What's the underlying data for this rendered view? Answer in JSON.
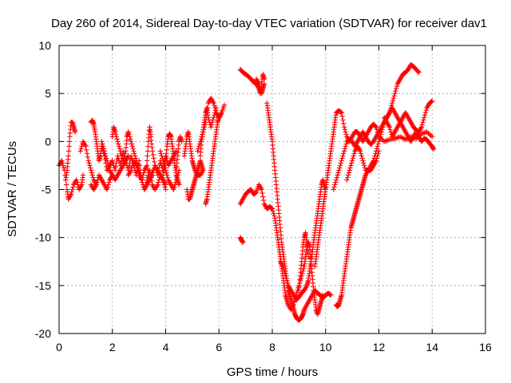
{
  "chart_data": {
    "type": "scatter",
    "title": "Day 260 of 2014, Sidereal Day-to-day VTEC variation (SDTVAR) for receiver dav1",
    "xlabel": "GPS time / hours",
    "ylabel": "SDTVAR / TECUs",
    "xlim": [
      0,
      16
    ],
    "ylim": [
      -20,
      10
    ],
    "xticks": [
      "0",
      "2",
      "4",
      "6",
      "8",
      "10",
      "12",
      "14",
      "16"
    ],
    "yticks": [
      "-20",
      "-15",
      "-10",
      "-5",
      "0",
      "5",
      "10"
    ],
    "grid": true,
    "marker": "+",
    "color": "#ff0000",
    "series": [
      {
        "name": "t0a",
        "x": [
          0.0,
          0.1,
          0.2,
          0.3,
          0.35,
          0.45,
          0.55,
          0.65,
          0.75,
          0.85,
          0.9
        ],
        "y": [
          -2.5,
          -2.0,
          -3.0,
          -5.0,
          -6.0,
          -5.5,
          -4.5,
          -4.0,
          -5.0,
          -4.5,
          -3.5
        ]
      },
      {
        "name": "t0b",
        "x": [
          0.25,
          0.3,
          0.35,
          0.4,
          0.45,
          0.5,
          0.55,
          0.6
        ],
        "y": [
          -4.0,
          -3.0,
          -1.5,
          0.5,
          2.0,
          2.0,
          1.5,
          1.0
        ]
      },
      {
        "name": "t0c",
        "x": [
          0.8,
          0.9,
          1.0,
          1.1,
          1.2,
          1.3,
          1.4
        ],
        "y": [
          -1.0,
          0.0,
          -0.5,
          -2.0,
          -3.0,
          -4.0,
          -4.5
        ]
      },
      {
        "name": "t1a",
        "x": [
          1.2,
          1.25,
          1.3,
          1.35,
          1.4,
          1.45,
          1.5,
          1.55,
          1.6,
          1.7,
          1.8,
          1.9,
          2.0,
          2.1,
          2.2,
          2.3,
          2.4,
          2.5,
          2.6,
          2.7,
          2.8,
          2.9,
          3.0,
          3.1,
          3.2,
          3.3,
          3.4,
          3.5,
          3.6,
          3.7,
          3.8,
          3.9,
          4.0,
          4.1,
          4.2,
          4.3,
          4.4
        ],
        "y": [
          2.0,
          2.2,
          1.8,
          1.0,
          0.0,
          -1.0,
          -2.0,
          -1.5,
          -0.5,
          -1.5,
          -3.0,
          -2.5,
          -2.0,
          -3.0,
          -1.5,
          -2.5,
          -1.0,
          -2.0,
          -3.0,
          -1.5,
          -2.5,
          -3.5,
          -2.0,
          -4.0,
          -3.0,
          -2.5,
          -4.0,
          -3.5,
          -2.5,
          -3.5,
          -2.0,
          -3.0,
          -1.5,
          -2.5,
          -2.0,
          -1.5,
          -1.0
        ]
      },
      {
        "name": "t1b",
        "x": [
          1.2,
          1.3,
          1.4,
          1.5,
          1.6,
          1.7,
          1.8,
          1.9,
          2.0
        ],
        "y": [
          -4.5,
          -5.0,
          -4.5,
          -3.5,
          -4.0,
          -4.5,
          -5.0,
          -4.0,
          -3.5
        ]
      },
      {
        "name": "t1c",
        "x": [
          1.6,
          1.7,
          1.8,
          1.9,
          2.0,
          2.1,
          2.2,
          2.3,
          2.4,
          2.5,
          2.6
        ],
        "y": [
          0.0,
          -1.0,
          -2.0,
          -3.0,
          -3.5,
          -4.0,
          -3.5,
          -3.0,
          -2.5,
          -2.0,
          -1.5
        ]
      },
      {
        "name": "t1d",
        "x": [
          2.0,
          2.05,
          2.1,
          2.2,
          2.3,
          2.4,
          2.5,
          2.55,
          2.6,
          2.7,
          2.8,
          2.9,
          3.0,
          3.1,
          3.2,
          3.3,
          3.4,
          3.5
        ],
        "y": [
          0.5,
          1.5,
          1.0,
          0.0,
          -1.0,
          -2.0,
          -1.0,
          0.5,
          1.0,
          0.0,
          -1.0,
          -2.0,
          -3.0,
          -4.0,
          -5.0,
          -4.5,
          -4.0,
          -3.0
        ]
      },
      {
        "name": "t1e",
        "x": [
          2.6,
          2.7,
          2.8,
          2.9,
          3.0,
          3.1,
          3.2,
          3.3,
          3.4,
          3.5,
          3.6,
          3.7,
          3.8,
          3.9,
          4.0
        ],
        "y": [
          -3.5,
          -3.0,
          -2.0,
          -2.5,
          -3.5,
          -4.0,
          -5.0,
          -4.0,
          -3.0,
          -4.5,
          -5.0,
          -4.5,
          -3.5,
          -4.0,
          -5.0
        ]
      },
      {
        "name": "t1f",
        "x": [
          3.3,
          3.35,
          3.4,
          3.45,
          3.5,
          3.6,
          3.7,
          3.8,
          3.9,
          4.0
        ],
        "y": [
          -2.0,
          0.0,
          1.5,
          0.5,
          -1.0,
          -2.5,
          -3.0,
          -3.5,
          -4.0,
          -4.5
        ]
      },
      {
        "name": "t2a",
        "x": [
          3.9,
          4.0,
          4.05,
          4.1,
          4.15,
          4.2,
          4.25,
          4.3,
          4.35,
          4.4,
          4.45,
          4.5
        ],
        "y": [
          -3.5,
          -2.0,
          -0.5,
          0.5,
          0.8,
          0.5,
          -0.5,
          -1.5,
          -2.5,
          -3.5,
          -4.0,
          -4.5
        ]
      },
      {
        "name": "t2b",
        "x": [
          3.8,
          3.9,
          4.0,
          4.1,
          4.2,
          4.3,
          4.4,
          4.5
        ],
        "y": [
          -1.0,
          -2.0,
          -3.0,
          -4.0,
          -4.5,
          -5.0,
          -4.0,
          -3.0
        ]
      },
      {
        "name": "t2c",
        "x": [
          4.4,
          4.45,
          4.5,
          4.55,
          4.6
        ],
        "y": [
          -3.0,
          -1.5,
          0.0,
          0.5,
          0.0
        ]
      },
      {
        "name": "t2d",
        "x": [
          4.7,
          4.75,
          4.8,
          4.85,
          4.9,
          4.95,
          5.0,
          5.05,
          5.1,
          5.2,
          5.3,
          5.4
        ],
        "y": [
          -1.5,
          -0.5,
          0.5,
          1.0,
          0.0,
          -1.0,
          -2.0,
          -2.5,
          -3.0,
          -3.5,
          -3.5,
          -3.0
        ]
      },
      {
        "name": "t2e",
        "x": [
          4.8,
          4.85,
          4.9,
          4.95,
          5.0,
          5.05,
          5.1,
          5.15,
          5.2,
          5.25,
          5.3,
          5.35,
          5.4
        ],
        "y": [
          -5.0,
          -6.0,
          -6.0,
          -5.5,
          -5.0,
          -4.5,
          -4.0,
          -3.5,
          -3.0,
          -2.5,
          -2.0,
          -2.5,
          -3.0
        ]
      },
      {
        "name": "t2f",
        "x": [
          5.2,
          5.3,
          5.4,
          5.5,
          5.6,
          5.7,
          5.8,
          5.9,
          6.0,
          6.1,
          6.2
        ],
        "y": [
          -1.0,
          0.0,
          1.0,
          2.0,
          4.0,
          4.5,
          4.0,
          3.0,
          2.5,
          3.0,
          3.8
        ]
      },
      {
        "name": "t2g",
        "x": [
          5.3,
          5.35,
          5.4,
          5.45,
          5.5,
          5.55,
          5.6,
          5.7,
          5.8,
          5.9
        ],
        "y": [
          -1.5,
          0.0,
          1.0,
          2.0,
          3.0,
          3.5,
          2.5,
          1.5,
          2.5,
          3.5
        ]
      },
      {
        "name": "t2h",
        "x": [
          5.5,
          5.55,
          5.6,
          5.65,
          5.7,
          5.75,
          5.8,
          5.85,
          5.9,
          5.95,
          6.0,
          6.05
        ],
        "y": [
          -6.5,
          -6.0,
          -5.0,
          -4.0,
          -3.0,
          -2.0,
          -1.0,
          0.0,
          1.0,
          2.0,
          2.5,
          2.8
        ]
      },
      {
        "name": "t3a",
        "x": [
          6.8,
          6.85,
          6.9
        ],
        "y": [
          -10.0,
          -10.3,
          -10.5
        ]
      },
      {
        "name": "t3b",
        "x": [
          6.8,
          6.9,
          7.0,
          7.1,
          7.2,
          7.3,
          7.4,
          7.5,
          7.6,
          7.7,
          7.8,
          7.9,
          8.0,
          8.1,
          8.15,
          8.2,
          8.25,
          8.3,
          8.35,
          8.4,
          8.45,
          8.5,
          8.55,
          8.6
        ],
        "y": [
          -6.5,
          -6.0,
          -5.5,
          -5.2,
          -5.0,
          -5.5,
          -5.3,
          -4.5,
          -5.0,
          -6.5,
          -7.0,
          -6.8,
          -7.0,
          -8.0,
          -9.0,
          -10.0,
          -11.0,
          -12.0,
          -13.0,
          -14.0,
          -15.0,
          -16.0,
          -16.5,
          -17.0
        ]
      },
      {
        "name": "t3c",
        "x": [
          6.8,
          6.9,
          7.0,
          7.1,
          7.2,
          7.3,
          7.4,
          7.5,
          7.55,
          7.6,
          7.65,
          7.7
        ],
        "y": [
          7.5,
          7.2,
          7.0,
          6.8,
          6.5,
          6.2,
          6.0,
          5.5,
          5.0,
          6.0,
          7.0,
          6.5
        ]
      },
      {
        "name": "t3d",
        "x": [
          7.4,
          7.5,
          7.6,
          7.65,
          7.7
        ],
        "y": [
          6.5,
          6.0,
          5.0,
          5.5,
          6.0
        ]
      },
      {
        "name": "t4a",
        "x": [
          7.8,
          7.85,
          7.9,
          7.95,
          8.0,
          8.05,
          8.1,
          8.15,
          8.2,
          8.25,
          8.3,
          8.35,
          8.4,
          8.45,
          8.5,
          8.55,
          8.6,
          8.65,
          8.7,
          8.75,
          8.8,
          8.85,
          8.9,
          8.95,
          9.0,
          9.05,
          9.1,
          9.15,
          9.2,
          9.3,
          9.4,
          9.5,
          9.6,
          9.7,
          9.8,
          9.9,
          10.0,
          10.1,
          10.2
        ],
        "y": [
          4.0,
          3.0,
          2.0,
          1.0,
          0.0,
          -1.5,
          -3.0,
          -4.5,
          -6.0,
          -7.5,
          -9.0,
          -10.5,
          -11.5,
          -12.5,
          -13.5,
          -14.5,
          -15.5,
          -16.0,
          -16.5,
          -17.0,
          -17.5,
          -18.0,
          -18.3,
          -18.5,
          -18.6,
          -18.5,
          -18.3,
          -18.0,
          -17.5,
          -17.0,
          -16.5,
          -16.0,
          -15.5,
          -15.8,
          -16.0,
          -16.3,
          -16.0,
          -15.8,
          -16.0
        ]
      },
      {
        "name": "t4b",
        "x": [
          8.3,
          8.4,
          8.5,
          8.6,
          8.7,
          8.8,
          8.9,
          9.0,
          9.1,
          9.2,
          9.3,
          9.35,
          9.4,
          9.45,
          9.5,
          9.55,
          9.6,
          9.65,
          9.7,
          9.75,
          9.8,
          9.85,
          9.9,
          9.95,
          10.0
        ],
        "y": [
          -12.5,
          -13.0,
          -14.0,
          -15.0,
          -15.5,
          -16.0,
          -16.5,
          -16.2,
          -15.8,
          -15.5,
          -15.0,
          -14.5,
          -13.5,
          -12.5,
          -11.5,
          -10.5,
          -9.5,
          -8.5,
          -7.5,
          -6.5,
          -5.5,
          -4.5,
          -4.0,
          -4.5,
          -5.0
        ]
      },
      {
        "name": "t4c",
        "x": [
          8.6,
          8.7,
          8.8,
          8.9,
          9.0,
          9.1,
          9.2,
          9.25,
          9.3,
          9.35,
          9.4,
          9.45,
          9.5,
          9.55,
          9.6,
          9.65,
          9.7,
          9.75,
          9.8,
          9.85,
          9.9
        ],
        "y": [
          -17.0,
          -17.5,
          -17.0,
          -16.0,
          -15.0,
          -14.0,
          -13.0,
          -12.0,
          -11.0,
          -10.5,
          -11.0,
          -12.5,
          -14.0,
          -15.5,
          -16.5,
          -17.5,
          -18.0,
          -17.5,
          -17.0,
          -16.5,
          -16.0
        ]
      },
      {
        "name": "t4d",
        "x": [
          9.0,
          9.05,
          9.1,
          9.15,
          9.2,
          9.25,
          9.3,
          9.35
        ],
        "y": [
          -15.5,
          -14.0,
          -12.5,
          -11.0,
          -10.0,
          -9.5,
          -10.5,
          -12.0
        ]
      },
      {
        "name": "t5a",
        "x": [
          9.6,
          9.65,
          9.7,
          9.75,
          9.8,
          9.85,
          9.9,
          9.95,
          10.0,
          10.05,
          10.1,
          10.15,
          10.2,
          10.25,
          10.3,
          10.35,
          10.4,
          10.5,
          10.6,
          10.7,
          10.8,
          10.9,
          11.0,
          11.1,
          11.2,
          11.3,
          11.4,
          11.5,
          11.6,
          11.7,
          11.8,
          11.9,
          12.0,
          12.2,
          12.4,
          12.6,
          12.8,
          13.0,
          13.2,
          13.4,
          13.6,
          13.8,
          14.0
        ],
        "y": [
          -13.0,
          -12.0,
          -11.0,
          -10.0,
          -9.0,
          -8.0,
          -7.0,
          -6.0,
          -5.0,
          -4.0,
          -3.0,
          -2.0,
          -1.0,
          0.0,
          1.0,
          2.0,
          3.0,
          3.2,
          3.0,
          1.5,
          0.5,
          0.0,
          0.5,
          1.0,
          1.0,
          0.5,
          0.0,
          0.5,
          1.0,
          1.5,
          1.8,
          1.5,
          0.5,
          0.0,
          0.2,
          0.3,
          0.5,
          0.2,
          0.5,
          0.3,
          0.8,
          1.0,
          0.5
        ]
      },
      {
        "name": "t5b",
        "x": [
          10.3,
          10.4,
          10.5,
          10.6,
          10.7,
          10.8,
          10.9,
          11.0,
          11.1,
          11.2,
          11.3,
          11.4,
          11.5,
          11.6,
          11.7,
          11.8,
          11.9,
          12.0,
          12.1,
          12.2,
          12.3,
          12.4,
          12.5,
          12.6,
          12.7,
          12.8,
          12.9,
          13.0,
          13.1,
          13.2,
          13.3,
          13.4,
          13.5,
          13.6,
          13.7,
          13.8,
          13.9,
          14.0
        ],
        "y": [
          -5.0,
          -4.0,
          -3.0,
          -2.0,
          -1.0,
          0.0,
          0.2,
          0.0,
          -0.5,
          0.0,
          0.5,
          1.0,
          0.5,
          0.0,
          -0.3,
          0.0,
          0.5,
          1.0,
          1.5,
          2.0,
          2.5,
          3.0,
          3.5,
          3.0,
          2.5,
          2.0,
          2.5,
          3.0,
          2.5,
          2.0,
          1.5,
          1.2,
          1.0,
          1.5,
          2.5,
          3.5,
          4.0,
          4.2
        ]
      },
      {
        "name": "t5c",
        "x": [
          10.4,
          10.45,
          10.5,
          10.55,
          10.6,
          10.65,
          10.7,
          10.75,
          10.8,
          10.85,
          10.9,
          10.95,
          11.0,
          11.05,
          11.1,
          11.15,
          11.2,
          11.25,
          11.3,
          11.35,
          11.4,
          11.45,
          11.5,
          11.6,
          11.7,
          11.8,
          11.9,
          12.0
        ],
        "y": [
          -17.0,
          -17.2,
          -17.0,
          -16.5,
          -16.0,
          -15.0,
          -14.0,
          -13.0,
          -12.0,
          -11.0,
          -10.0,
          -9.0,
          -8.5,
          -8.0,
          -7.5,
          -7.0,
          -6.5,
          -6.0,
          -5.5,
          -5.0,
          -4.5,
          -4.0,
          -3.5,
          -3.0,
          -3.0,
          -2.5,
          -2.0,
          -1.0
        ]
      },
      {
        "name": "t5d",
        "x": [
          10.8,
          10.9,
          11.0,
          11.1,
          11.2,
          11.3,
          11.4,
          11.5,
          11.6,
          11.7,
          11.8,
          11.9,
          12.0,
          12.1,
          12.2,
          12.3,
          12.4,
          12.5,
          12.6,
          12.7,
          12.8,
          12.9,
          13.0,
          13.1,
          13.2,
          13.3,
          13.4,
          13.5
        ],
        "y": [
          -4.0,
          -3.0,
          -2.0,
          -1.0,
          -0.5,
          -1.0,
          -2.0,
          -3.0,
          -3.0,
          -2.5,
          -2.0,
          -1.0,
          0.0,
          1.0,
          2.0,
          2.5,
          3.0,
          4.0,
          5.0,
          6.0,
          6.5,
          7.0,
          7.2,
          7.5,
          8.0,
          7.8,
          7.5,
          7.2
        ]
      },
      {
        "name": "t5e",
        "x": [
          12.2,
          12.3,
          12.4,
          12.5,
          12.6,
          12.7,
          12.8,
          12.9,
          13.0,
          13.1,
          13.2,
          13.3,
          13.4,
          13.5,
          13.6,
          13.7,
          13.8,
          13.9,
          14.0,
          14.05
        ],
        "y": [
          2.5,
          2.0,
          1.5,
          0.5,
          1.0,
          1.5,
          2.0,
          1.5,
          1.0,
          0.5,
          0.0,
          0.5,
          1.0,
          0.5,
          0.0,
          0.3,
          0.2,
          -0.2,
          -0.5,
          -0.8
        ]
      }
    ]
  }
}
